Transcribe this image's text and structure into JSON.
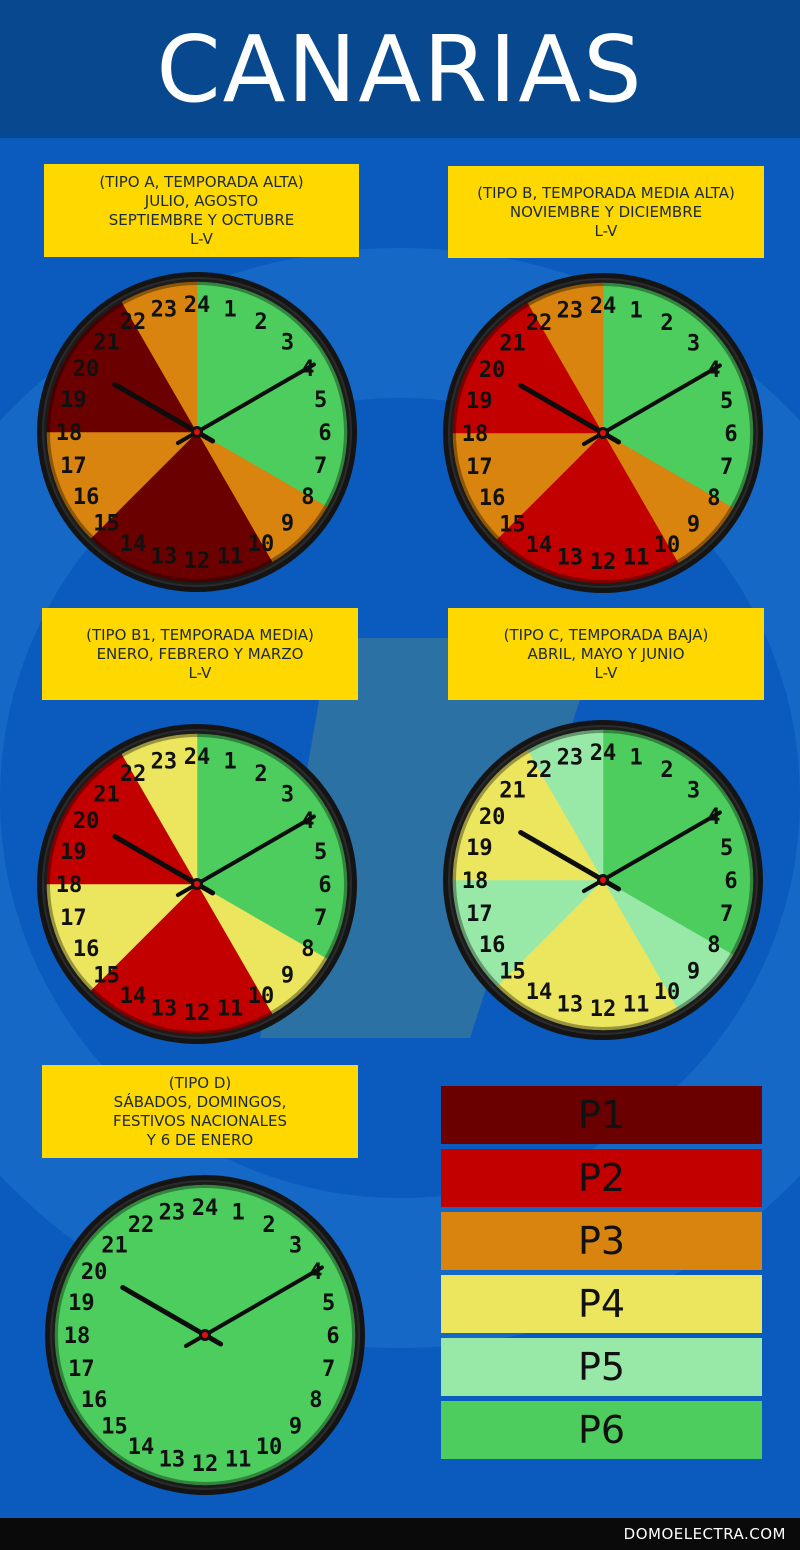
{
  "title": "CANARIAS",
  "footer": "DOMOELECTRA.COM",
  "colors": {
    "P1": "#6b0000",
    "P2": "#c20000",
    "P3": "#d8840f",
    "P4": "#ece55e",
    "P5": "#98e8a8",
    "P6": "#4ccd5e"
  },
  "clocks": [
    {
      "id": "tipo-a",
      "lines": [
        "(Tipo A, temporada alta)",
        "Julio, agosto",
        "septiembre y octubre",
        "L-V"
      ],
      "periods": [
        "P6",
        "P6",
        "P6",
        "P6",
        "P6",
        "P6",
        "P6",
        "P6",
        "P3",
        "P3",
        "P1",
        "P1",
        "P1",
        "P1",
        "P1",
        "P3",
        "P3",
        "P3",
        "P1",
        "P1",
        "P1",
        "P1",
        "P3",
        "P3"
      ]
    },
    {
      "id": "tipo-b",
      "lines": [
        "(Tipo B, temporada media alta)",
        "Noviembre y diciembre",
        "L-V"
      ],
      "periods": [
        "P6",
        "P6",
        "P6",
        "P6",
        "P6",
        "P6",
        "P6",
        "P6",
        "P3",
        "P3",
        "P2",
        "P2",
        "P2",
        "P2",
        "P2",
        "P3",
        "P3",
        "P3",
        "P2",
        "P2",
        "P2",
        "P2",
        "P3",
        "P3"
      ]
    },
    {
      "id": "tipo-b1",
      "lines": [
        "(Tipo B1, temporada media)",
        "Enero, febrero y marzo",
        "L-V"
      ],
      "periods": [
        "P6",
        "P6",
        "P6",
        "P6",
        "P6",
        "P6",
        "P6",
        "P6",
        "P4",
        "P4",
        "P2",
        "P2",
        "P2",
        "P2",
        "P2",
        "P4",
        "P4",
        "P4",
        "P2",
        "P2",
        "P2",
        "P2",
        "P4",
        "P4"
      ]
    },
    {
      "id": "tipo-c",
      "lines": [
        "(Tipo C, temporada baja)",
        "Abril, mayo y junio",
        "L-V"
      ],
      "periods": [
        "P6",
        "P6",
        "P6",
        "P6",
        "P6",
        "P6",
        "P6",
        "P6",
        "P5",
        "P5",
        "P4",
        "P4",
        "P4",
        "P4",
        "P4",
        "P5",
        "P5",
        "P5",
        "P4",
        "P4",
        "P4",
        "P4",
        "P5",
        "P5"
      ]
    },
    {
      "id": "tipo-d",
      "lines": [
        "(Tipo D)",
        "Sábados, domingos,",
        "festivos nacionales",
        "y 6 de enero"
      ],
      "periods": [
        "P6",
        "P6",
        "P6",
        "P6",
        "P6",
        "P6",
        "P6",
        "P6",
        "P6",
        "P6",
        "P6",
        "P6",
        "P6",
        "P6",
        "P6",
        "P6",
        "P6",
        "P6",
        "P6",
        "P6",
        "P6",
        "P6",
        "P6",
        "P6"
      ]
    }
  ],
  "hour_labels": [
    "1",
    "2",
    "3",
    "4",
    "5",
    "6",
    "7",
    "8",
    "9",
    "10",
    "11",
    "12",
    "13",
    "14",
    "15",
    "16",
    "17",
    "18",
    "19",
    "20",
    "21",
    "22",
    "23",
    "24"
  ],
  "legend": [
    {
      "label": "P1",
      "color": "#6b0000"
    },
    {
      "label": "P2",
      "color": "#c20000"
    },
    {
      "label": "P3",
      "color": "#d8840f"
    },
    {
      "label": "P4",
      "color": "#ece55e"
    },
    {
      "label": "P5",
      "color": "#98e8a8"
    },
    {
      "label": "P6",
      "color": "#4ccd5e"
    }
  ]
}
